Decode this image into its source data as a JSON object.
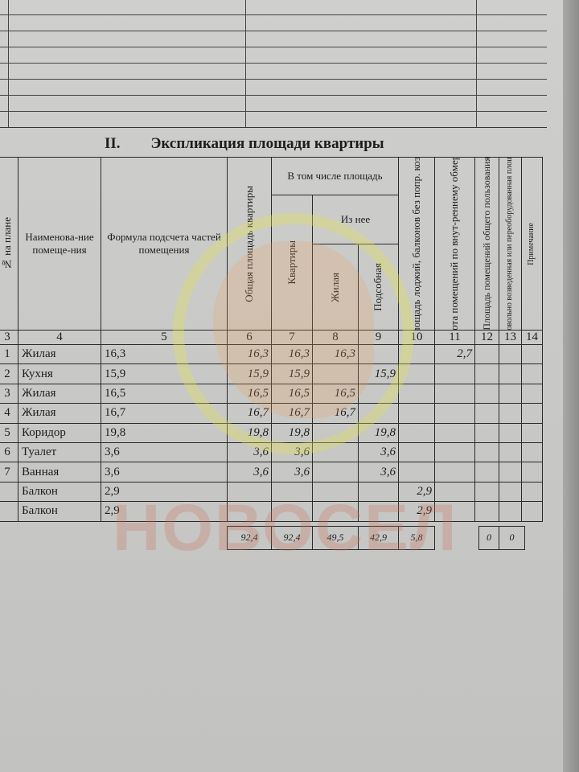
{
  "section": {
    "number": "II.",
    "title": "Экспликация площади квартиры"
  },
  "headers": {
    "c3": "№ на плане",
    "c4": "Наименова-ние помеще-ния",
    "c5": "Формула подсчета частей помещения",
    "c6": "Общая площадь квартиры",
    "group": "В том числе площадь",
    "c7": "Квартиры",
    "subgroup": "Из нее",
    "c8": "Жилая",
    "c9": "Подсобная",
    "c10": "Площадь лоджий, балконов без попр. коэф.",
    "c11": "Высота помещений по внут-реннему обмеру, м",
    "c12": "Площадь помещений общего пользования",
    "c13": "Самовольно возведенная или переоборудованная площадь",
    "c14": "Примечание"
  },
  "column_numbers": [
    "3",
    "4",
    "5",
    "6",
    "7",
    "8",
    "9",
    "10",
    "11",
    "12",
    "13",
    "14"
  ],
  "rows": [
    {
      "no": "1",
      "name": "Жилая",
      "formula": "16,3",
      "total": "16,3",
      "apt": "16,3",
      "living": "16,3",
      "aux": "",
      "balcony": "",
      "height": "2,7"
    },
    {
      "no": "2",
      "name": "Кухня",
      "formula": "15,9",
      "total": "15,9",
      "apt": "15,9",
      "living": "",
      "aux": "15,9",
      "balcony": "",
      "height": ""
    },
    {
      "no": "3",
      "name": "Жилая",
      "formula": "16,5",
      "total": "16,5",
      "apt": "16,5",
      "living": "16,5",
      "aux": "",
      "balcony": "",
      "height": ""
    },
    {
      "no": "4",
      "name": "Жилая",
      "formula": "16,7",
      "total": "16,7",
      "apt": "16,7",
      "living": "16,7",
      "aux": "",
      "balcony": "",
      "height": ""
    },
    {
      "no": "5",
      "name": "Коридор",
      "formula": "19,8",
      "total": "19,8",
      "apt": "19,8",
      "living": "",
      "aux": "19,8",
      "balcony": "",
      "height": ""
    },
    {
      "no": "6",
      "name": "Туалет",
      "formula": "3,6",
      "total": "3,6",
      "apt": "3,6",
      "living": "",
      "aux": "3,6",
      "balcony": "",
      "height": ""
    },
    {
      "no": "7",
      "name": "Ванная",
      "formula": "3,6",
      "total": "3,6",
      "apt": "3,6",
      "living": "",
      "aux": "3,6",
      "balcony": "",
      "height": ""
    },
    {
      "no": "",
      "name": "Балкон",
      "formula": "2,9",
      "total": "",
      "apt": "",
      "living": "",
      "aux": "",
      "balcony": "2,9",
      "height": ""
    },
    {
      "no": "",
      "name": "Балкон",
      "formula": "2,9",
      "total": "",
      "apt": "",
      "living": "",
      "aux": "",
      "balcony": "2,9",
      "height": ""
    }
  ],
  "totals": {
    "total": "92,4",
    "apt": "92,4",
    "living": "49,5",
    "aux": "42,9",
    "balcony": "5,8",
    "common": "0",
    "unauthorized": "0"
  },
  "watermark": "НОВОСЕЛ"
}
